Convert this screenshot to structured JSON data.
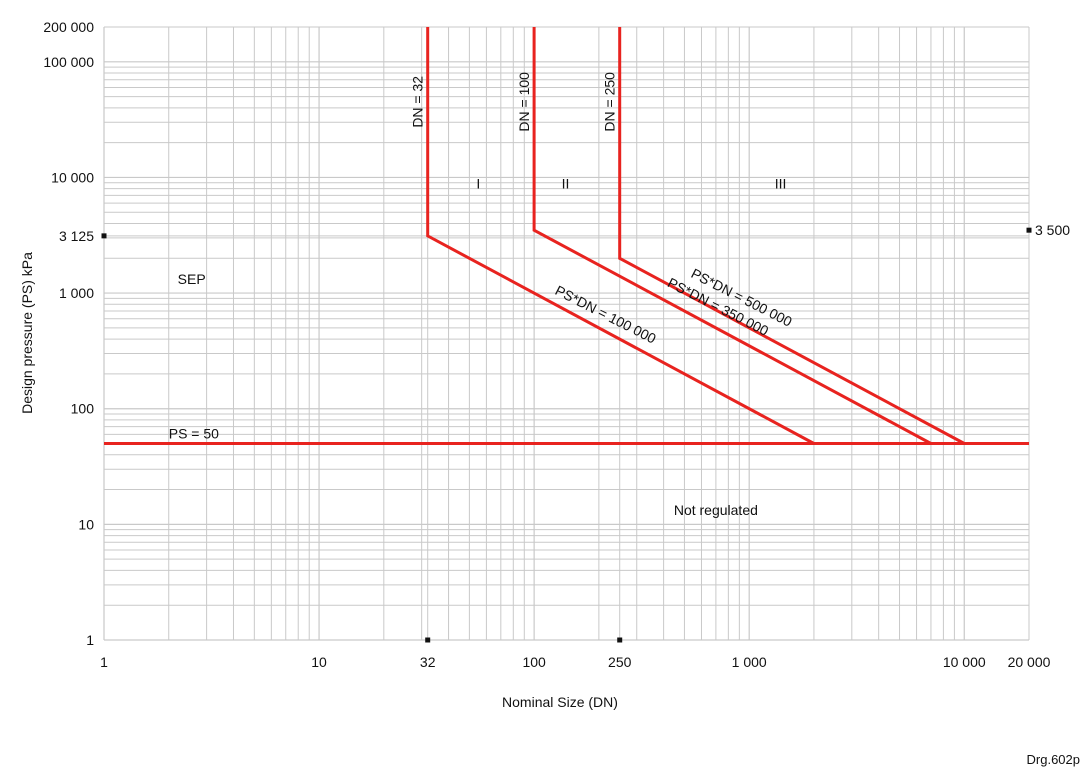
{
  "chart_data": {
    "type": "line",
    "xscale": "log",
    "yscale": "log",
    "xlim": [
      1,
      20000
    ],
    "ylim": [
      1,
      200000
    ],
    "xlabel": "Nominal Size (DN)",
    "ylabel": "Design pressure (PS) kPa",
    "grid": true,
    "x_ticks": [
      {
        "value": 1,
        "label": "1"
      },
      {
        "value": 10,
        "label": "10"
      },
      {
        "value": 32,
        "label": "32"
      },
      {
        "value": 100,
        "label": "100"
      },
      {
        "value": 250,
        "label": "250"
      },
      {
        "value": 1000,
        "label": "1 000"
      },
      {
        "value": 10000,
        "label": "10 000"
      },
      {
        "value": 20000,
        "label": "20 000"
      }
    ],
    "y_ticks": [
      {
        "value": 1,
        "label": "1"
      },
      {
        "value": 10,
        "label": "10"
      },
      {
        "value": 100,
        "label": "100"
      },
      {
        "value": 1000,
        "label": "1 000"
      },
      {
        "value": 3125,
        "label": "3 125"
      },
      {
        "value": 10000,
        "label": "10 000"
      },
      {
        "value": 100000,
        "label": "100 000"
      },
      {
        "value": 200000,
        "label": "200 000"
      }
    ],
    "right_marker": {
      "value": 3500,
      "label": "3 500"
    },
    "line_color": "#e8231f",
    "series": [
      {
        "points": [
          [
            1,
            50
          ],
          [
            20000,
            50
          ]
        ]
      },
      {
        "points": [
          [
            32,
            200000
          ],
          [
            32,
            3125
          ],
          [
            2000,
            50
          ]
        ]
      },
      {
        "points": [
          [
            100,
            200000
          ],
          [
            100,
            3500
          ],
          [
            7000,
            50
          ]
        ]
      },
      {
        "points": [
          [
            250,
            200000
          ],
          [
            250,
            2000
          ],
          [
            10000,
            50
          ]
        ]
      }
    ],
    "line_labels": [
      {
        "text": "DN = 32",
        "x": 32,
        "y": 100000
      },
      {
        "text": "DN = 100",
        "x": 100,
        "y": 100000
      },
      {
        "text": "DN = 250",
        "x": 250,
        "y": 100000
      },
      {
        "text": "PS = 50",
        "x": 2,
        "y": 55
      },
      {
        "text": "PS*DN = 500 000",
        "x": 900,
        "y": 840
      },
      {
        "text": "PS*DN = 350 000",
        "x": 700,
        "y": 700
      },
      {
        "text": "PS*DN = 100 000",
        "x": 210,
        "y": 600
      }
    ],
    "region_labels": [
      {
        "text": "SEP",
        "x": 2.2,
        "y": 1200
      },
      {
        "text": "I",
        "x": 55,
        "y": 8000
      },
      {
        "text": "II",
        "x": 140,
        "y": 8000
      },
      {
        "text": "III",
        "x": 1400,
        "y": 8000
      },
      {
        "text": "Not regulated",
        "x": 700,
        "y": 12
      }
    ]
  },
  "footer": {
    "drawing_ref": "Drg.602p"
  }
}
